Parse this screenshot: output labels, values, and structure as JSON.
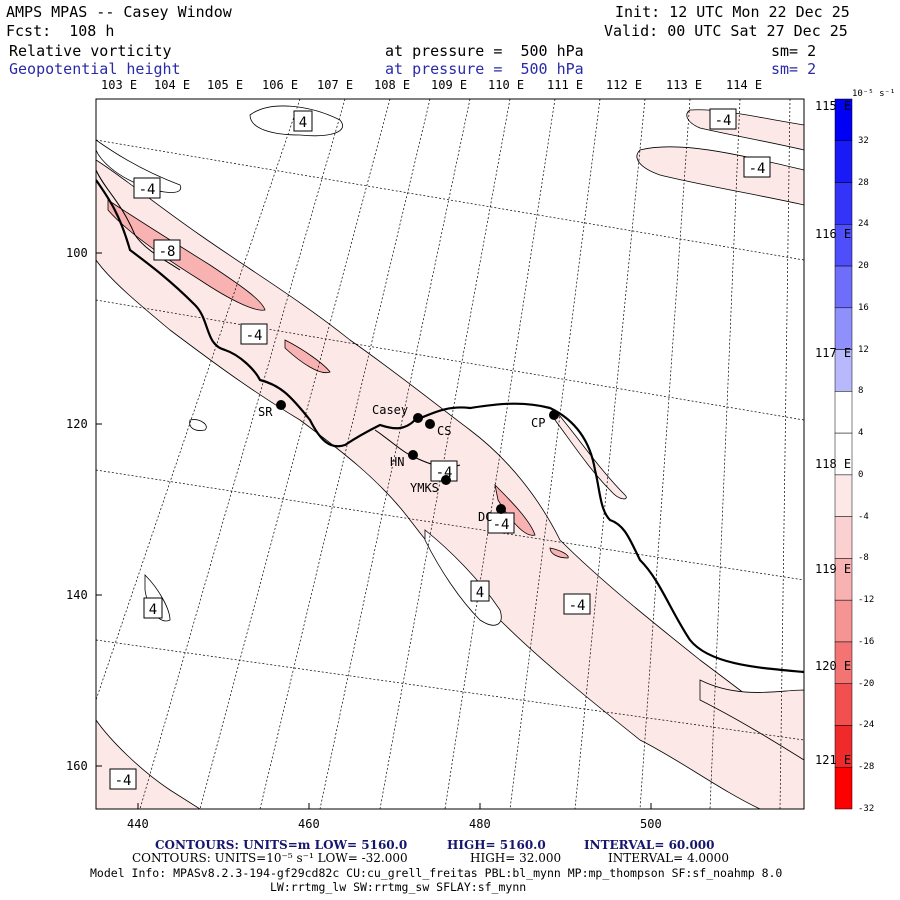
{
  "header": {
    "title": "AMPS MPAS -- Casey Window",
    "init": "Init: 12 UTC Mon 22 Dec 25",
    "fcst": "Fcst:  108 h",
    "valid": "Valid: 00 UTC Sat 27 Dec 25",
    "field1": "Relative vorticity",
    "field1_level": "at pressure =  500 hPa",
    "field1_sm": "sm= 2",
    "field2": "Geopotential height",
    "field2_level": "at pressure =  500 hPa",
    "field2_sm": "sm= 2"
  },
  "axes": {
    "top_lon": [
      "103 E",
      "104 E",
      "105 E",
      "106 E",
      "107 E",
      "108 E",
      "109 E",
      "110 E",
      "111 E",
      "112 E",
      "113 E",
      "114 E"
    ],
    "right_lon": [
      "115 E",
      "116 E",
      "117 E",
      "118 E",
      "119 E",
      "120 E",
      "121 E"
    ],
    "x_ticks": [
      "440",
      "460",
      "480",
      "500"
    ],
    "y_ticks": [
      "100",
      "120",
      "140",
      "160"
    ]
  },
  "stations": [
    {
      "id": "SR",
      "label": "SR"
    },
    {
      "id": "casey",
      "label": "Casey"
    },
    {
      "id": "cs",
      "label": "CS"
    },
    {
      "id": "cp",
      "label": "CP"
    },
    {
      "id": "hn",
      "label": "HN"
    },
    {
      "id": "ymks",
      "label": "YMKS"
    },
    {
      "id": "dc",
      "label": "DC"
    }
  ],
  "contour_labels": [
    "4",
    "-4",
    "-4",
    "-4",
    "-8",
    "-4",
    "-4",
    "4",
    "-4",
    "4",
    "-4",
    "-4"
  ],
  "colorbar": {
    "unit": "10⁻⁵ s⁻¹",
    "labels": [
      "32",
      "28",
      "24",
      "20",
      "16",
      "12",
      "8",
      "4",
      "0",
      "-4",
      "-8",
      "-12",
      "-16",
      "-20",
      "-24",
      "-28",
      "-32"
    ],
    "colors": [
      "#0000f4",
      "#1a1af6",
      "#3434f8",
      "#4e4efa",
      "#6e6efb",
      "#9090fc",
      "#b8b8fd",
      "#ffffff",
      "#ffffff",
      "#fde8e8",
      "#fbd0d0",
      "#f8b2b2",
      "#f69494",
      "#f47474",
      "#f25050",
      "#f02a2a",
      "#ff0000"
    ]
  },
  "footer": {
    "line1_a": "CONTOURS:  UNITS=m  LOW=  5160.0",
    "line1_b": "HIGH=  5160.0",
    "line1_c": "INTERVAL=   60.000",
    "line2_a": "CONTOURS:  UNITS=10⁻⁵ s⁻¹  LOW= -32.000",
    "line2_b": "HIGH=  32.000",
    "line2_c": "INTERVAL=   4.0000",
    "line3": "Model Info: MPASv8.2.3-194-gf29cd82c CU:cu_grell_freitas PBL:bl_mynn MP:mp_thompson SF:sf_noahmp 8.0",
    "line4": "LW:rrtmg_lw SW:rrtmg_sw SFLAY:sf_mynn"
  }
}
